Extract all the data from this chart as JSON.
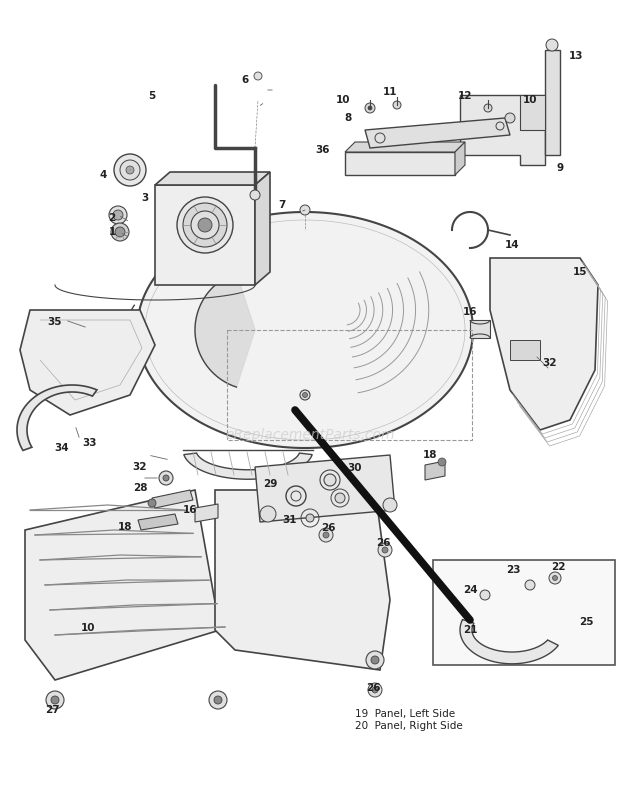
{
  "bg_color": "#ffffff",
  "watermark": "eReplacementParts.com",
  "line_color": "#444444",
  "light_fill": "#f0f0f0",
  "mid_fill": "#e0e0e0",
  "dark_fill": "#cccccc"
}
